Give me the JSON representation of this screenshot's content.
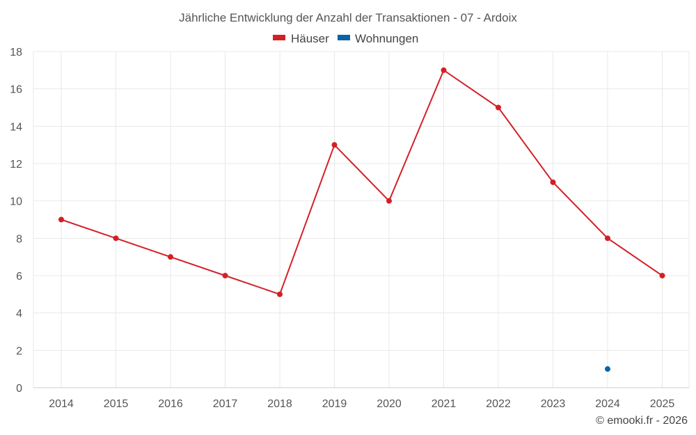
{
  "chart_data": {
    "type": "line",
    "title": "Jährliche Entwicklung der Anzahl der Transaktionen - 07 - Ardoix",
    "categories": [
      "2014",
      "2015",
      "2016",
      "2017",
      "2018",
      "2019",
      "2020",
      "2021",
      "2022",
      "2023",
      "2024",
      "2025"
    ],
    "series": [
      {
        "name": "Häuser",
        "color": "#d32027",
        "values": [
          9,
          8,
          7,
          6,
          5,
          13,
          10,
          17,
          15,
          11,
          8,
          6
        ]
      },
      {
        "name": "Wohnungen",
        "color": "#0b63a5",
        "values": [
          null,
          null,
          null,
          null,
          null,
          null,
          null,
          null,
          null,
          null,
          1,
          null
        ]
      }
    ],
    "ylim": [
      0,
      18
    ],
    "yticks": [
      "0",
      "2",
      "4",
      "6",
      "8",
      "10",
      "12",
      "14",
      "16",
      "18"
    ],
    "xlabel": "",
    "ylabel": "",
    "grid": true,
    "legend_position": "top-center"
  },
  "credit": "© emooki.fr - 2026"
}
